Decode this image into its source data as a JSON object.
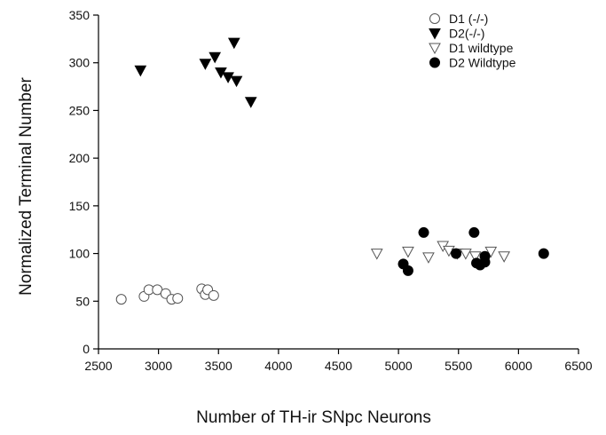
{
  "chart_data": {
    "type": "scatter",
    "title": "",
    "xlabel": "Number of TH-ir SNpc Neurons",
    "ylabel": "Normalized  Terminal Number",
    "xlim": [
      2500,
      6500
    ],
    "ylim": [
      0,
      350
    ],
    "x_ticks": [
      2500,
      3000,
      3500,
      4000,
      4500,
      5000,
      5500,
      6000,
      6500
    ],
    "y_ticks": [
      0,
      50,
      100,
      150,
      200,
      250,
      300,
      350
    ],
    "grid": false,
    "legend_position": "top-right",
    "series": [
      {
        "name": "D1 (-/-)",
        "marker": "circle-open",
        "color": "#000000",
        "points": [
          [
            2690,
            52
          ],
          [
            2880,
            55
          ],
          [
            2920,
            62
          ],
          [
            2990,
            62
          ],
          [
            3060,
            58
          ],
          [
            3110,
            52
          ],
          [
            3160,
            53
          ],
          [
            3360,
            63
          ],
          [
            3390,
            57
          ],
          [
            3410,
            62
          ],
          [
            3460,
            56
          ]
        ]
      },
      {
        "name": "D2(-/-)",
        "marker": "triangle-down-filled",
        "color": "#000000",
        "points": [
          [
            2850,
            292
          ],
          [
            3390,
            299
          ],
          [
            3470,
            306
          ],
          [
            3520,
            290
          ],
          [
            3580,
            285
          ],
          [
            3630,
            321
          ],
          [
            3650,
            281
          ],
          [
            3770,
            259
          ]
        ]
      },
      {
        "name": "D1 wildtype",
        "marker": "triangle-down-open",
        "color": "#000000",
        "points": [
          [
            4820,
            100
          ],
          [
            5080,
            102
          ],
          [
            5250,
            96
          ],
          [
            5370,
            108
          ],
          [
            5420,
            103
          ],
          [
            5490,
            100
          ],
          [
            5560,
            100
          ],
          [
            5640,
            97
          ],
          [
            5770,
            102
          ],
          [
            5880,
            97
          ]
        ]
      },
      {
        "name": "D2 Wildtype",
        "marker": "circle-filled",
        "color": "#000000",
        "points": [
          [
            5040,
            89
          ],
          [
            5080,
            82
          ],
          [
            5210,
            122
          ],
          [
            5480,
            100
          ],
          [
            5630,
            122
          ],
          [
            5650,
            90
          ],
          [
            5680,
            88
          ],
          [
            5720,
            91
          ],
          [
            5720,
            97
          ],
          [
            6210,
            100
          ]
        ]
      }
    ]
  }
}
